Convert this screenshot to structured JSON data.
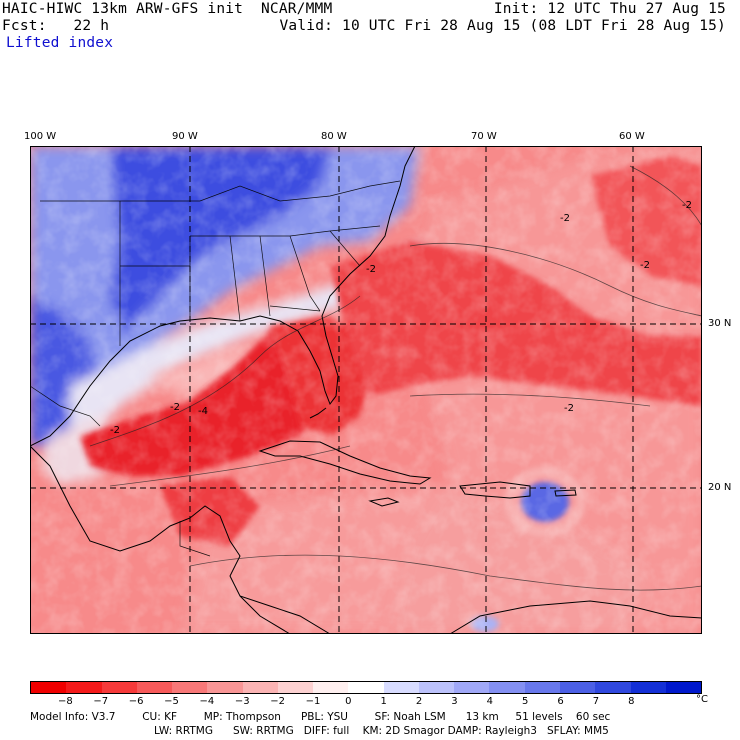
{
  "header": {
    "line1_left": "HAIC-HIWC 13km ARW-GFS init  NCAR/MMM",
    "line1_right": "Init: 12 UTC Thu 27 Aug 15",
    "line2_left": "Fcst:   22 h",
    "line2_right": "Valid: 10 UTC Fri 28 Aug 15 (08 LDT Fri 28 Aug 15)",
    "field_name": "Lifted index"
  },
  "map": {
    "longitude_labels": [
      "100 W",
      "90 W",
      "80 W",
      "70 W",
      "60 W"
    ],
    "latitude_labels": [
      "30 N",
      "20 N"
    ],
    "contour_labels": [
      "-2",
      "-2",
      "-2",
      "-2",
      "-2",
      "-4",
      "-2",
      "-2"
    ],
    "colors": {
      "strong_red": "#e8141c",
      "mid_red": "#f4605f",
      "light_red": "#fbb8b8",
      "white": "#ffffff",
      "light_blue": "#c8d0f8",
      "mid_blue": "#7a88ec",
      "strong_blue": "#2c3ad8",
      "coastline": "#000000"
    }
  },
  "colorbar": {
    "colors": [
      "#f00000",
      "#f41a1a",
      "#f63a3a",
      "#f75a5a",
      "#f87878",
      "#f99696",
      "#fbb4b4",
      "#fdd2d2",
      "#fff0f0",
      "#ffffff",
      "#d8dcff",
      "#bcc2fb",
      "#a0a8f7",
      "#8490f2",
      "#6878ec",
      "#4c60e5",
      "#3048de",
      "#1430d6",
      "#0018cc"
    ],
    "ticks": [
      "−8",
      "−7",
      "−6",
      "−5",
      "−4",
      "−3",
      "−2",
      "−1",
      "0",
      "1",
      "2",
      "3",
      "4",
      "5",
      "6",
      "7",
      "8"
    ],
    "unit": "°C"
  },
  "footer": {
    "line1": "Model Info: V3.7        CU: KF        MP: Thompson      PBL: YSU        SF: Noah LSM      13 km     51 levels    60 sec",
    "line2": "LW: RRTMG      SW: RRTMG   DIFF: full    KM: 2D Smagor DAMP: Rayleigh3   SFLAY: MM5"
  }
}
